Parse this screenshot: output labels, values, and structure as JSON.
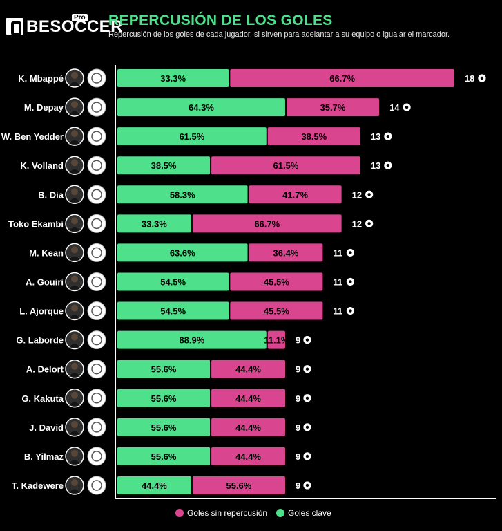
{
  "brand": {
    "name": "BESOCCER",
    "badge": "Pro"
  },
  "title": "REPERCUSIÓN DE LOS GOLES",
  "subtitle": "Repercusión de los goles de cada jugador, si sirven para adelantar a su equipo o igualar el marcador.",
  "colors": {
    "key": "#4ee08a",
    "no_impact": "#d9468f",
    "axis": "#ffffff",
    "background": "#000000"
  },
  "legend": {
    "no_impact_label": "Goles sin repercusión",
    "key_label": "Goles clave"
  },
  "chart_data": {
    "type": "bar",
    "orientation": "horizontal",
    "stacked": true,
    "categories": [
      "K. Mbappé",
      "M. Depay",
      "W. Ben Yedder",
      "K. Volland",
      "B. Dia",
      "Toko Ekambi",
      "M. Kean",
      "A. Gouiri",
      "L. Ajorque",
      "G. Laborde",
      "A. Delort",
      "G. Kakuta",
      "J. David",
      "B. Yilmaz",
      "T. Kadewere"
    ],
    "clubs": [
      "PSG",
      "Lyon",
      "Monaco",
      "Monaco",
      "Reims",
      "Lyon",
      "PSG",
      "Nice",
      "Strasbourg",
      "Montpellier",
      "Montpellier",
      "Lens",
      "Lille",
      "Lille",
      "Lyon"
    ],
    "totals": [
      18,
      14,
      13,
      13,
      12,
      12,
      11,
      11,
      11,
      9,
      9,
      9,
      9,
      9,
      9
    ],
    "total_icon": "soccer-ball-icon",
    "series": [
      {
        "name": "Goles clave",
        "key": "key",
        "values": [
          6,
          9,
          8,
          5,
          7,
          4,
          7,
          6,
          6,
          8,
          5,
          5,
          5,
          5,
          4
        ],
        "labels": [
          "33.3%",
          "64.3%",
          "61.5%",
          "38.5%",
          "58.3%",
          "33.3%",
          "63.6%",
          "54.5%",
          "54.5%",
          "88.9%",
          "55.6%",
          "55.6%",
          "55.6%",
          "55.6%",
          "44.4%"
        ]
      },
      {
        "name": "Goles sin repercusión",
        "key": "no_impact",
        "values": [
          12,
          5,
          5,
          8,
          5,
          8,
          4,
          5,
          5,
          1,
          4,
          4,
          4,
          4,
          5
        ],
        "labels": [
          "66.7%",
          "35.7%",
          "38.5%",
          "61.5%",
          "41.7%",
          "66.7%",
          "36.4%",
          "45.5%",
          "45.5%",
          "11.1%",
          "44.4%",
          "44.4%",
          "44.4%",
          "44.4%",
          "55.6%"
        ]
      }
    ],
    "xlim": [
      0,
      20.5
    ],
    "grid": false,
    "legend_position": "bottom-center"
  }
}
